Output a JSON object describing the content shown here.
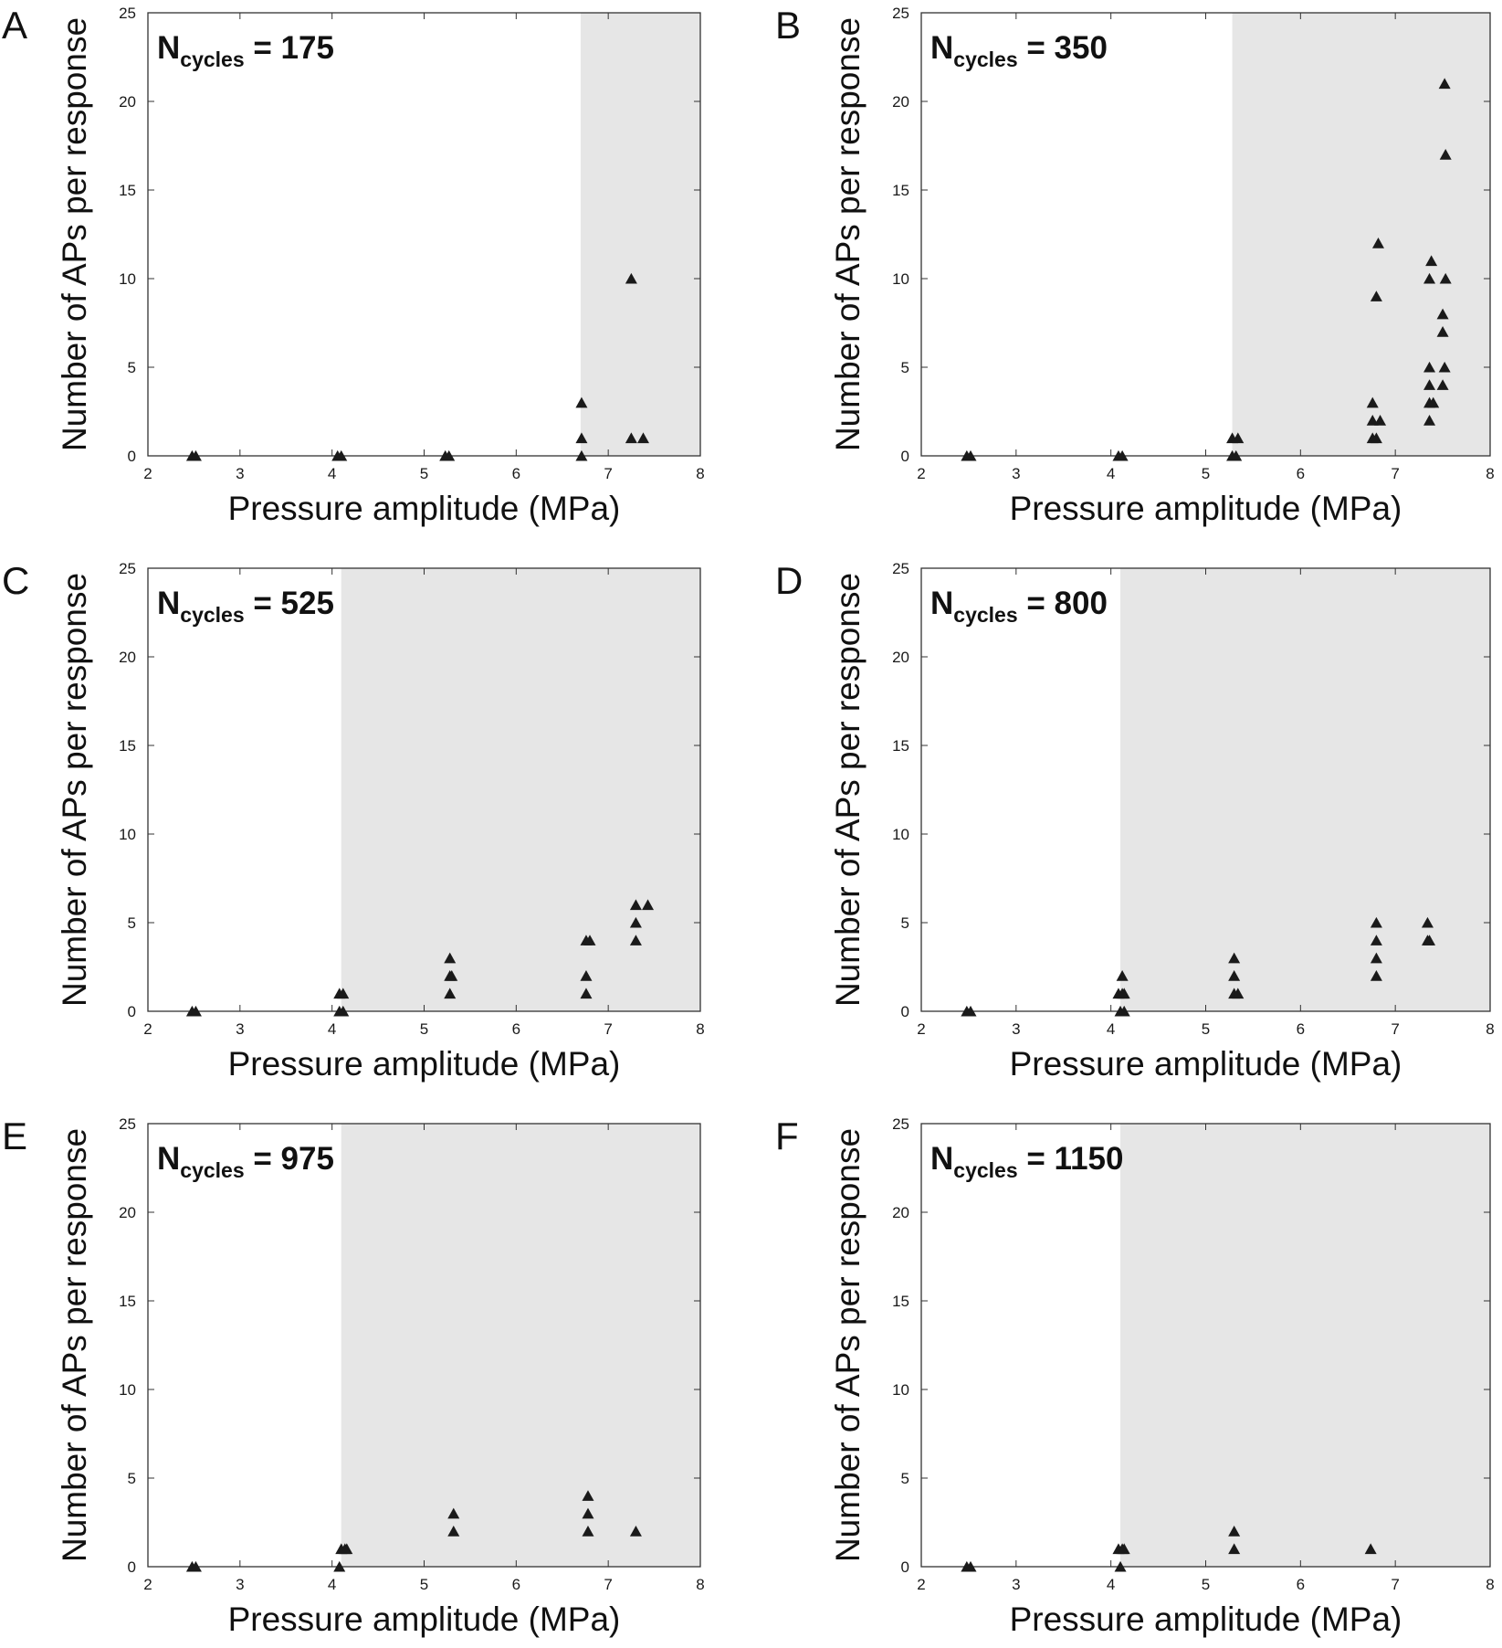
{
  "colors": {
    "shade": "#e6e6e6",
    "marker": "#1a1a1a",
    "axis": "#333333",
    "background": "#ffffff"
  },
  "chart_data": [
    {
      "panel": "A",
      "type": "scatter",
      "marker": "triangle",
      "annotation": {
        "main": "N",
        "sub": "cycles",
        "rest": " = 175"
      },
      "xlabel": "Pressure amplitude (MPa)",
      "ylabel": "Number of APs per response",
      "xlim": [
        2,
        8
      ],
      "ylim": [
        0,
        25
      ],
      "xticks": [
        "2",
        "3",
        "4",
        "5",
        "6",
        "7",
        "8"
      ],
      "yticks": [
        "0",
        "5",
        "10",
        "15",
        "20",
        "25"
      ],
      "shaded_from_x": 6.7,
      "points": [
        [
          2.48,
          0
        ],
        [
          2.52,
          0
        ],
        [
          4.06,
          0
        ],
        [
          4.1,
          0
        ],
        [
          5.23,
          0
        ],
        [
          5.27,
          0
        ],
        [
          6.71,
          0
        ],
        [
          6.71,
          1
        ],
        [
          6.71,
          3
        ],
        [
          7.25,
          10
        ],
        [
          7.25,
          1
        ],
        [
          7.38,
          1
        ]
      ]
    },
    {
      "panel": "B",
      "type": "scatter",
      "marker": "triangle",
      "annotation": {
        "main": "N",
        "sub": "cycles",
        "rest": " = 350"
      },
      "xlabel": "Pressure amplitude (MPa)",
      "ylabel": "Number of APs per response",
      "xlim": [
        2,
        8
      ],
      "ylim": [
        0,
        25
      ],
      "xticks": [
        "2",
        "3",
        "4",
        "5",
        "6",
        "7",
        "8"
      ],
      "yticks": [
        "0",
        "5",
        "10",
        "15",
        "20",
        "25"
      ],
      "shaded_from_x": 5.28,
      "points": [
        [
          2.48,
          0
        ],
        [
          2.52,
          0
        ],
        [
          4.08,
          0
        ],
        [
          4.12,
          0
        ],
        [
          5.28,
          0
        ],
        [
          5.32,
          0
        ],
        [
          5.28,
          1
        ],
        [
          5.34,
          1
        ],
        [
          6.76,
          3
        ],
        [
          6.76,
          2
        ],
        [
          6.76,
          1
        ],
        [
          6.8,
          1
        ],
        [
          6.84,
          2
        ],
        [
          6.8,
          9
        ],
        [
          6.82,
          12
        ],
        [
          7.36,
          5
        ],
        [
          7.36,
          4
        ],
        [
          7.36,
          3
        ],
        [
          7.36,
          2
        ],
        [
          7.36,
          10
        ],
        [
          7.38,
          11
        ],
        [
          7.4,
          3
        ],
        [
          7.5,
          4
        ],
        [
          7.52,
          5
        ],
        [
          7.5,
          7
        ],
        [
          7.5,
          8
        ],
        [
          7.53,
          10
        ],
        [
          7.53,
          17
        ],
        [
          7.52,
          21
        ]
      ]
    },
    {
      "panel": "C",
      "type": "scatter",
      "marker": "triangle",
      "annotation": {
        "main": "N",
        "sub": "cycles",
        "rest": " = 525"
      },
      "xlabel": "Pressure amplitude (MPa)",
      "ylabel": "Number of APs per response",
      "xlim": [
        2,
        8
      ],
      "ylim": [
        0,
        25
      ],
      "xticks": [
        "2",
        "3",
        "4",
        "5",
        "6",
        "7",
        "8"
      ],
      "yticks": [
        "0",
        "5",
        "10",
        "15",
        "20",
        "25"
      ],
      "shaded_from_x": 4.1,
      "points": [
        [
          2.48,
          0
        ],
        [
          2.52,
          0
        ],
        [
          4.08,
          0
        ],
        [
          4.12,
          0
        ],
        [
          4.08,
          1
        ],
        [
          4.12,
          1
        ],
        [
          5.28,
          1
        ],
        [
          5.28,
          2
        ],
        [
          5.3,
          2
        ],
        [
          5.28,
          3
        ],
        [
          6.76,
          1
        ],
        [
          6.76,
          2
        ],
        [
          6.76,
          4
        ],
        [
          6.8,
          4
        ],
        [
          7.3,
          4
        ],
        [
          7.3,
          5
        ],
        [
          7.3,
          6
        ],
        [
          7.43,
          6
        ]
      ]
    },
    {
      "panel": "D",
      "type": "scatter",
      "marker": "triangle",
      "annotation": {
        "main": "N",
        "sub": "cycles",
        "rest": " = 800"
      },
      "xlabel": "Pressure amplitude (MPa)",
      "ylabel": "Number of APs per response",
      "xlim": [
        2,
        8
      ],
      "ylim": [
        0,
        25
      ],
      "xticks": [
        "2",
        "3",
        "4",
        "5",
        "6",
        "7",
        "8"
      ],
      "yticks": [
        "0",
        "5",
        "10",
        "15",
        "20",
        "25"
      ],
      "shaded_from_x": 4.1,
      "points": [
        [
          2.48,
          0
        ],
        [
          2.52,
          0
        ],
        [
          4.1,
          0
        ],
        [
          4.14,
          0
        ],
        [
          4.08,
          1
        ],
        [
          4.12,
          1
        ],
        [
          4.14,
          1
        ],
        [
          4.12,
          2
        ],
        [
          5.3,
          1
        ],
        [
          5.34,
          1
        ],
        [
          5.3,
          2
        ],
        [
          5.3,
          3
        ],
        [
          6.8,
          2
        ],
        [
          6.8,
          3
        ],
        [
          6.8,
          4
        ],
        [
          6.8,
          5
        ],
        [
          7.34,
          4
        ],
        [
          7.36,
          4
        ],
        [
          7.34,
          5
        ]
      ]
    },
    {
      "panel": "E",
      "type": "scatter",
      "marker": "triangle",
      "annotation": {
        "main": "N",
        "sub": "cycles",
        "rest": " = 975"
      },
      "xlabel": "Pressure amplitude (MPa)",
      "ylabel": "Number of APs per response",
      "xlim": [
        2,
        8
      ],
      "ylim": [
        0,
        25
      ],
      "xticks": [
        "2",
        "3",
        "4",
        "5",
        "6",
        "7",
        "8"
      ],
      "yticks": [
        "0",
        "5",
        "10",
        "15",
        "20",
        "25"
      ],
      "shaded_from_x": 4.1,
      "points": [
        [
          2.48,
          0
        ],
        [
          2.52,
          0
        ],
        [
          4.08,
          0
        ],
        [
          4.1,
          1
        ],
        [
          4.14,
          1
        ],
        [
          4.16,
          1
        ],
        [
          5.32,
          2
        ],
        [
          5.32,
          3
        ],
        [
          6.78,
          2
        ],
        [
          6.78,
          3
        ],
        [
          6.78,
          4
        ],
        [
          7.3,
          2
        ]
      ]
    },
    {
      "panel": "F",
      "type": "scatter",
      "marker": "triangle",
      "annotation": {
        "main": "N",
        "sub": "cycles",
        "rest": " = 1150"
      },
      "xlabel": "Pressure amplitude (MPa)",
      "ylabel": "Number of APs per response",
      "xlim": [
        2,
        8
      ],
      "ylim": [
        0,
        25
      ],
      "xticks": [
        "2",
        "3",
        "4",
        "5",
        "6",
        "7",
        "8"
      ],
      "yticks": [
        "0",
        "5",
        "10",
        "15",
        "20",
        "25"
      ],
      "shaded_from_x": 4.1,
      "points": [
        [
          2.48,
          0
        ],
        [
          2.52,
          0
        ],
        [
          4.1,
          0
        ],
        [
          4.08,
          1
        ],
        [
          4.12,
          1
        ],
        [
          4.14,
          1
        ],
        [
          5.3,
          1
        ],
        [
          5.3,
          2
        ],
        [
          6.74,
          1
        ]
      ]
    }
  ]
}
